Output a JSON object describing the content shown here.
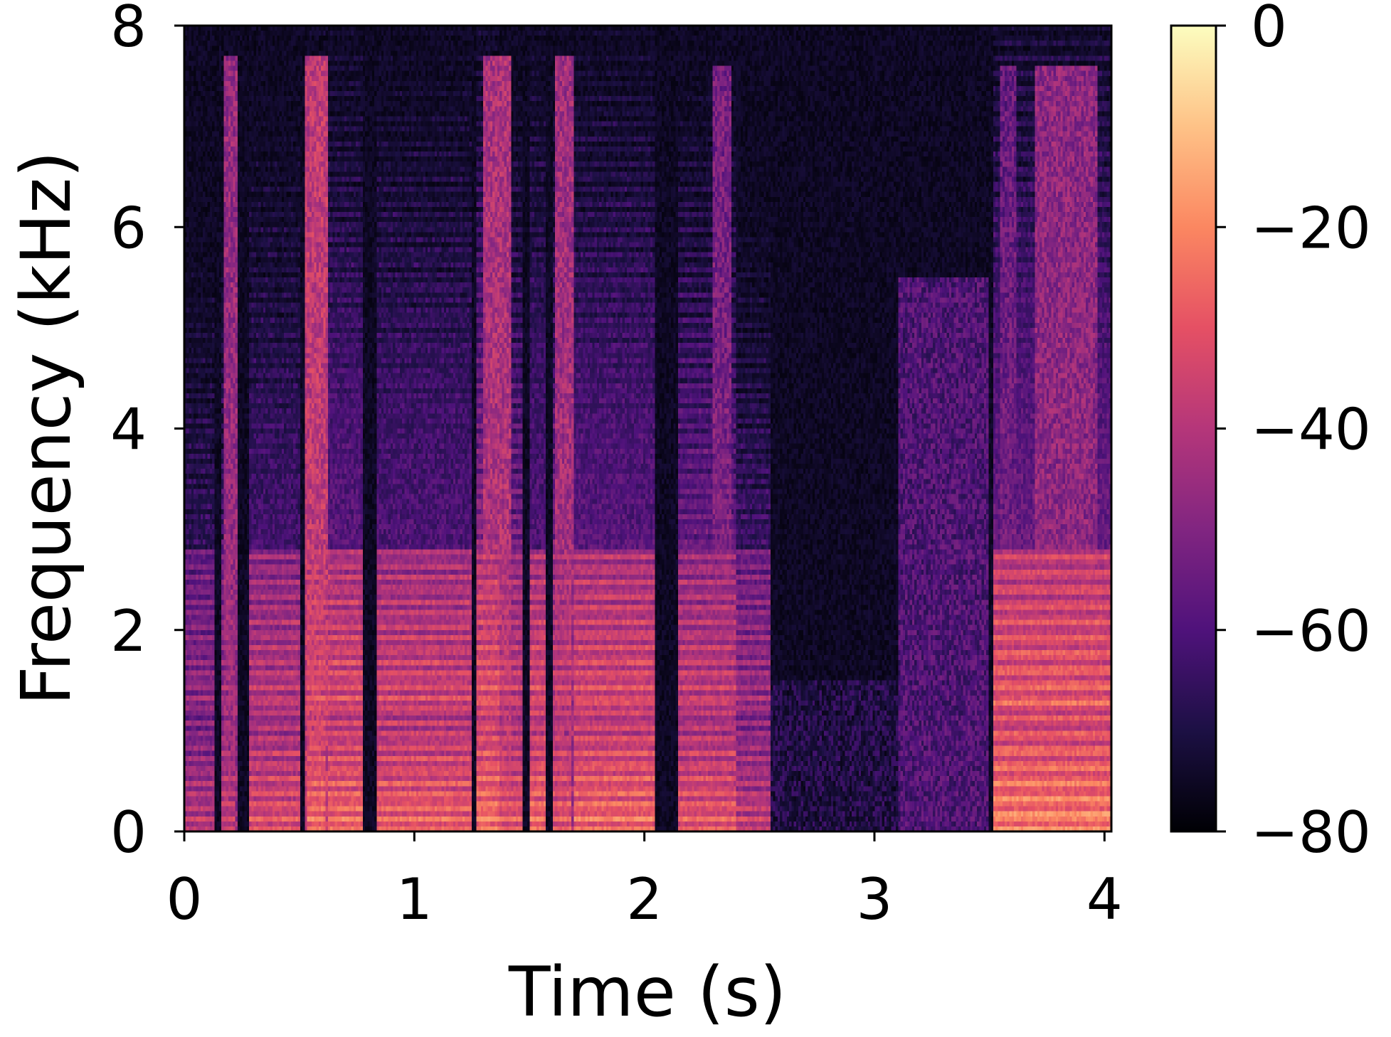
{
  "chart_data": {
    "type": "heatmap",
    "title": "",
    "xlabel": "Time (s)",
    "ylabel": "Frequency (kHz)",
    "xlim": [
      0,
      4.03
    ],
    "ylim": [
      0,
      8
    ],
    "xticks": [
      0,
      1,
      2,
      3,
      4
    ],
    "yticks": [
      0,
      2,
      4,
      6,
      8
    ],
    "colormap": "magma",
    "colorbar": {
      "range": [
        -80,
        0
      ],
      "ticks": [
        0,
        -20,
        -40,
        -60,
        -80
      ],
      "tick_labels": [
        "0",
        "−20",
        "−40",
        "−60",
        "−80"
      ]
    },
    "grid": false,
    "time_frames": 400,
    "freq_bins": 160,
    "voiced_segments": [
      {
        "t0": 0.0,
        "t1": 0.13,
        "f0_khz": 0.12,
        "peak_db": -32,
        "hf_db": -64
      },
      {
        "t0": 0.16,
        "t1": 0.22,
        "f0_khz": 0.13,
        "peak_db": -30,
        "hf_db": -48
      },
      {
        "t0": 0.28,
        "t1": 0.5,
        "f0_khz": 0.13,
        "peak_db": -24,
        "hf_db": -62
      },
      {
        "t0": 0.53,
        "t1": 0.61,
        "f0_khz": 0.12,
        "peak_db": -18,
        "hf_db": -34
      },
      {
        "t0": 0.62,
        "t1": 0.78,
        "f0_khz": 0.12,
        "peak_db": -18,
        "hf_db": -58
      },
      {
        "t0": 0.84,
        "t1": 1.25,
        "f0_khz": 0.12,
        "peak_db": -20,
        "hf_db": -60
      },
      {
        "t0": 1.27,
        "t1": 1.37,
        "f0_khz": 0.13,
        "peak_db": -16,
        "hf_db": -40
      },
      {
        "t0": 1.37,
        "t1": 1.47,
        "f0_khz": 0.13,
        "peak_db": -22,
        "hf_db": -38
      },
      {
        "t0": 1.5,
        "t1": 1.57,
        "f0_khz": 0.13,
        "peak_db": -18,
        "hf_db": -60
      },
      {
        "t0": 1.6,
        "t1": 1.68,
        "f0_khz": 0.13,
        "peak_db": -22,
        "hf_db": -40
      },
      {
        "t0": 1.69,
        "t1": 2.05,
        "f0_khz": 0.13,
        "peak_db": -18,
        "hf_db": -58
      },
      {
        "t0": 2.15,
        "t1": 2.4,
        "f0_khz": 0.13,
        "peak_db": -22,
        "hf_db": -52
      },
      {
        "t0": 2.4,
        "t1": 2.55,
        "f0_khz": 0.12,
        "peak_db": -30,
        "hf_db": -62
      },
      {
        "t0": 3.52,
        "t1": 4.03,
        "f0_khz": 0.16,
        "peak_db": -14,
        "hf_db": -55
      }
    ],
    "noise_segments": [
      {
        "t0": 0.17,
        "t1": 0.23,
        "fmax_khz": 7.7,
        "db": -46
      },
      {
        "t0": 0.52,
        "t1": 0.62,
        "fmax_khz": 7.7,
        "db": -38
      },
      {
        "t0": 1.3,
        "t1": 1.42,
        "fmax_khz": 7.7,
        "db": -42
      },
      {
        "t0": 1.61,
        "t1": 1.69,
        "fmax_khz": 7.7,
        "db": -44
      },
      {
        "t0": 2.3,
        "t1": 2.38,
        "fmax_khz": 7.6,
        "db": -52
      },
      {
        "t0": 2.55,
        "t1": 3.1,
        "fmax_khz": 1.5,
        "db": -70
      },
      {
        "t0": 3.1,
        "t1": 3.5,
        "fmax_khz": 5.5,
        "db": -60
      },
      {
        "t0": 3.55,
        "t1": 3.62,
        "fmax_khz": 7.6,
        "db": -55
      },
      {
        "t0": 3.7,
        "t1": 3.97,
        "fmax_khz": 7.6,
        "db": -48
      }
    ],
    "background_db": -78
  }
}
